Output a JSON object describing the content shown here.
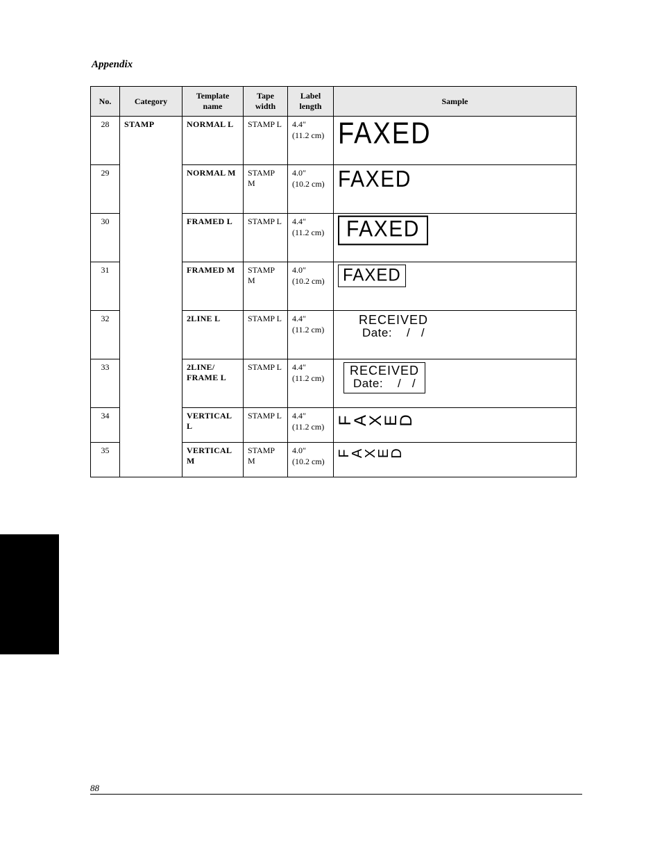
{
  "page": {
    "section_title": "Appendix",
    "page_number": "88"
  },
  "table": {
    "headers": {
      "no": "No.",
      "category": "Category",
      "template_name_l1": "Template",
      "template_name_l2": "name",
      "tape_width_l1": "Tape",
      "tape_width_l2": "width",
      "label_length_l1": "Label",
      "label_length_l2": "length",
      "sample": "Sample"
    },
    "category_label": "STAMP",
    "rows": [
      {
        "no": "28",
        "template_name": "NORMAL L",
        "tape_width": "STAMP L",
        "len_top": "4.4″",
        "len_bot": "(11.2 cm)",
        "sample_type": "plain-xl",
        "sample_text": "FAXED"
      },
      {
        "no": "29",
        "template_name": "NORMAL M",
        "tape_width": "STAMP M",
        "len_top": "4.0″",
        "len_bot": "(10.2 cm)",
        "sample_type": "plain-lg",
        "sample_text": "FAXED"
      },
      {
        "no": "30",
        "template_name": "FRAMED L",
        "tape_width": "STAMP L",
        "len_top": "4.4″",
        "len_bot": "(11.2 cm)",
        "sample_type": "box-lg",
        "sample_text": "FAXED"
      },
      {
        "no": "31",
        "template_name": "FRAMED M",
        "tape_width": "STAMP M",
        "len_top": "4.0″",
        "len_bot": "(10.2 cm)",
        "sample_type": "box-md",
        "sample_text": "FAXED"
      },
      {
        "no": "32",
        "template_name": "2LINE L",
        "tape_width": "STAMP L",
        "len_top": "4.4″",
        "len_bot": "(11.2 cm)",
        "sample_type": "2line",
        "sample_l1": "RECEIVED",
        "sample_l2": "Date:    /   /"
      },
      {
        "no": "33",
        "template_name": "2LINE/\nFRAME L",
        "tape_width": "STAMP L",
        "len_top": "4.4″",
        "len_bot": "(11.2 cm)",
        "sample_type": "2line-box",
        "sample_l1": "RECEIVED",
        "sample_l2": "Date:    /   /"
      },
      {
        "no": "34",
        "template_name": "VERTICAL L",
        "tape_width": "STAMP L",
        "len_top": "4.4″",
        "len_bot": "(11.2 cm)",
        "sample_type": "vert-lg",
        "sample_text": "FAXED"
      },
      {
        "no": "35",
        "template_name": "VERTICAL M",
        "tape_width": "STAMP M",
        "len_top": "4.0″",
        "len_bot": "(10.2 cm)",
        "sample_type": "vert-md",
        "sample_text": "FAXED"
      }
    ]
  },
  "style": {
    "header_bg": "#e8e8e8",
    "border_color": "#000000",
    "font_body": "Georgia, 'Times New Roman', serif",
    "font_sample": "Arial, Helvetica, sans-serif",
    "text_color": "#000000",
    "page_bg": "#ffffff"
  }
}
